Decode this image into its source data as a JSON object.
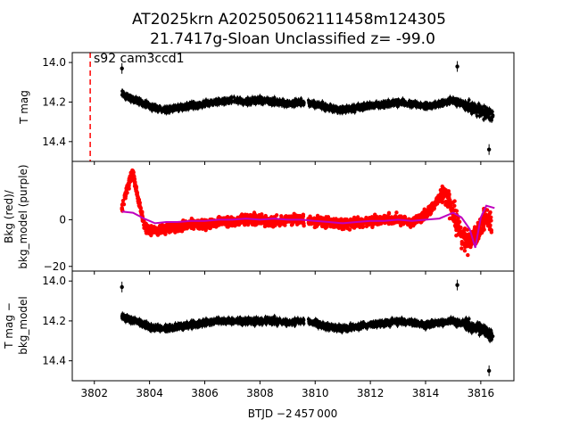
{
  "figure": {
    "title_line1": "AT2025krn  A202505062111458m124305",
    "title_line2": "21.7417g-Sloan Unclassified z= -99.0",
    "xlabel": "BTJD −2 457 000"
  },
  "colors": {
    "data_black": "#000000",
    "bkg_red": "#ff0000",
    "model_purple": "#bf00bf",
    "marker_line": "#ff0000"
  },
  "chart_data": [
    {
      "type": "scatter",
      "panel": "top",
      "ylabel": "T mag",
      "annotation": "s92 cam3ccd1",
      "marker_x": 3801.85,
      "xlim": [
        3801.2,
        3817.2
      ],
      "ylim": [
        14.5,
        13.95
      ],
      "y_inverted": true,
      "xticks": [
        3802,
        3804,
        3806,
        3808,
        3810,
        3812,
        3814,
        3816
      ],
      "yticks": [
        14.0,
        14.2,
        14.4
      ],
      "ytick_labels": [
        "14.0",
        "14.2",
        "14.4"
      ],
      "gap": [
        3809.6,
        3809.75
      ],
      "outliers": [
        [
          3803.0,
          14.03
        ],
        [
          3815.15,
          14.02
        ],
        [
          3816.3,
          14.44
        ]
      ],
      "series": [
        {
          "x": [
            3803.0,
            3803.5,
            3804.0,
            3804.5,
            3805.0,
            3805.5,
            3806.0,
            3806.5,
            3807.0,
            3807.5,
            3808.0,
            3808.5,
            3809.0,
            3809.5,
            3810.0,
            3810.5,
            3811.0,
            3811.5,
            3812.0,
            3812.5,
            3813.0,
            3813.5,
            3814.0,
            3814.5,
            3815.0,
            3815.5,
            3816.0,
            3816.4
          ],
          "y": [
            14.16,
            14.19,
            14.22,
            14.24,
            14.23,
            14.22,
            14.21,
            14.2,
            14.19,
            14.2,
            14.19,
            14.2,
            14.21,
            14.2,
            14.21,
            14.23,
            14.24,
            14.23,
            14.22,
            14.21,
            14.2,
            14.21,
            14.22,
            14.21,
            14.19,
            14.22,
            14.24,
            14.26
          ]
        }
      ]
    },
    {
      "type": "scatter",
      "panel": "middle",
      "ylabel_line1": "Bkg (red)/",
      "ylabel_line2": "bkg_model (purple)",
      "xlim": [
        3801.2,
        3817.2
      ],
      "ylim": [
        -22,
        25
      ],
      "yticks": [
        0,
        -20
      ],
      "ytick_labels": [
        "0",
        "−20"
      ],
      "series": [
        {
          "name": "Bkg",
          "color": "red",
          "x": [
            3803.0,
            3803.2,
            3803.4,
            3803.6,
            3803.8,
            3804.0,
            3804.5,
            3805.0,
            3805.5,
            3806.0,
            3806.5,
            3807.0,
            3807.5,
            3808.0,
            3808.5,
            3809.0,
            3809.5,
            3810.0,
            3810.5,
            3811.0,
            3811.5,
            3812.0,
            3812.5,
            3813.0,
            3813.5,
            3814.0,
            3814.4,
            3814.7,
            3815.0,
            3815.3,
            3815.6,
            3815.9,
            3816.2,
            3816.4
          ],
          "y": [
            5,
            14,
            20,
            8,
            -2,
            -5,
            -4,
            -3,
            -2,
            -2,
            -1,
            -1,
            0,
            0,
            -1,
            0,
            0,
            -1,
            -1,
            -2,
            -1,
            -1,
            0,
            0,
            -1,
            2,
            8,
            12,
            3,
            -6,
            -10,
            -4,
            2,
            -2
          ]
        },
        {
          "name": "bkg_model",
          "color": "purple",
          "x": [
            3803.0,
            3803.4,
            3803.8,
            3804.2,
            3804.6,
            3805.0,
            3805.5,
            3806.0,
            3806.5,
            3807.0,
            3807.5,
            3808.0,
            3808.5,
            3809.0,
            3809.5,
            3810.0,
            3810.5,
            3811.0,
            3811.5,
            3812.0,
            3812.5,
            3813.0,
            3813.5,
            3814.0,
            3814.5,
            3815.0,
            3815.3,
            3815.6,
            3815.8,
            3816.0,
            3816.2,
            3816.5
          ],
          "y": [
            3.5,
            3.0,
            0.5,
            -1.5,
            -1.0,
            -1.0,
            -0.5,
            -0.5,
            0.0,
            0.0,
            0.5,
            0.0,
            0.5,
            0.0,
            0.0,
            -0.5,
            -1.0,
            -1.5,
            -1.0,
            -0.5,
            -0.5,
            0.0,
            -0.5,
            0.0,
            0.5,
            3.0,
            1.0,
            -4.0,
            -12.0,
            1.0,
            6.0,
            5.0
          ]
        }
      ]
    },
    {
      "type": "scatter",
      "panel": "bottom",
      "ylabel_line1": "T mag −",
      "ylabel_line2": "bkg_model",
      "xlim": [
        3801.2,
        3817.2
      ],
      "ylim": [
        14.5,
        13.95
      ],
      "y_inverted": true,
      "xticks": [
        3802,
        3804,
        3806,
        3808,
        3810,
        3812,
        3814,
        3816
      ],
      "xtick_labels": [
        "3802",
        "3804",
        "3806",
        "3808",
        "3810",
        "3812",
        "3814",
        "3816"
      ],
      "yticks": [
        14.0,
        14.2,
        14.4
      ],
      "ytick_labels": [
        "14.0",
        "14.2",
        "14.4"
      ],
      "outliers": [
        [
          3803.0,
          14.03
        ],
        [
          3815.15,
          14.02
        ],
        [
          3816.3,
          14.45
        ]
      ],
      "series": [
        {
          "x": [
            3803.0,
            3803.5,
            3804.0,
            3804.5,
            3805.0,
            3805.5,
            3806.0,
            3806.5,
            3807.0,
            3807.5,
            3808.0,
            3808.5,
            3809.0,
            3809.5,
            3810.0,
            3810.5,
            3811.0,
            3811.5,
            3812.0,
            3812.5,
            3813.0,
            3813.5,
            3814.0,
            3814.5,
            3815.0,
            3815.5,
            3816.0,
            3816.4
          ],
          "y": [
            14.18,
            14.2,
            14.23,
            14.24,
            14.23,
            14.22,
            14.21,
            14.2,
            14.2,
            14.2,
            14.2,
            14.2,
            14.21,
            14.2,
            14.21,
            14.23,
            14.24,
            14.23,
            14.22,
            14.21,
            14.2,
            14.21,
            14.22,
            14.21,
            14.2,
            14.22,
            14.24,
            14.27
          ]
        }
      ]
    }
  ]
}
